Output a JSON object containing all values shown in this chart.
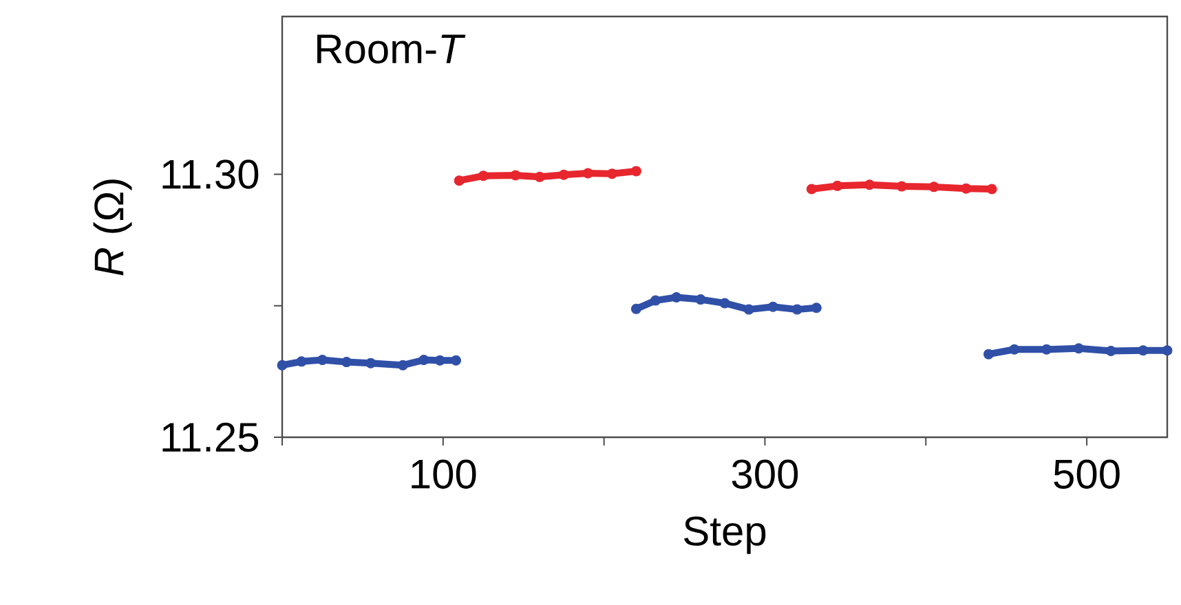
{
  "chart_data": {
    "type": "line",
    "line_style": "solid",
    "xlabel": "Step",
    "ylabel": "*R* (Ω)",
    "annotations": [
      "Room-*T*"
    ],
    "xlim": [
      0,
      550
    ],
    "ylim": [
      11.25,
      11.33
    ],
    "xticks": [
      {
        "value": 0,
        "label": null
      },
      100,
      {
        "value": 200,
        "label": null
      },
      300,
      {
        "value": 400,
        "label": null
      },
      500
    ],
    "yticks": [
      11.25,
      {
        "value": 11.275,
        "label": null
      },
      {
        "value": 11.3,
        "label": "11.30"
      }
    ],
    "marker": "circle",
    "series": [
      {
        "color": "#3050a8",
        "x": [
          0,
          12,
          25,
          40,
          55,
          75,
          88,
          98,
          108
        ],
        "values": [
          11.2637,
          11.2644,
          11.2647,
          11.2643,
          11.2641,
          11.2637,
          11.2647,
          11.2646,
          11.2646
        ]
      },
      {
        "color": "#e8262e",
        "x": [
          110,
          125,
          145,
          160,
          175,
          190,
          205,
          220
        ],
        "values": [
          11.2988,
          11.2997,
          11.2998,
          11.2995,
          11.2999,
          11.3002,
          11.3001,
          11.3006
        ]
      },
      {
        "color": "#3050a8",
        "x": [
          220,
          232,
          245,
          260,
          275,
          290,
          305,
          320,
          332
        ],
        "values": [
          11.2744,
          11.276,
          11.2766,
          11.2762,
          11.2755,
          11.2743,
          11.2748,
          11.2743,
          11.2746
        ]
      },
      {
        "color": "#e8262e",
        "x": [
          329,
          345,
          365,
          385,
          405,
          425,
          441
        ],
        "values": [
          11.2972,
          11.2978,
          11.298,
          11.2977,
          11.2976,
          11.2973,
          11.2972
        ]
      },
      {
        "color": "#3050a8",
        "x": [
          439,
          455,
          475,
          495,
          515,
          535,
          550
        ],
        "values": [
          11.2658,
          11.2667,
          11.2667,
          11.2669,
          11.2664,
          11.2665,
          11.2665
        ]
      }
    ]
  }
}
